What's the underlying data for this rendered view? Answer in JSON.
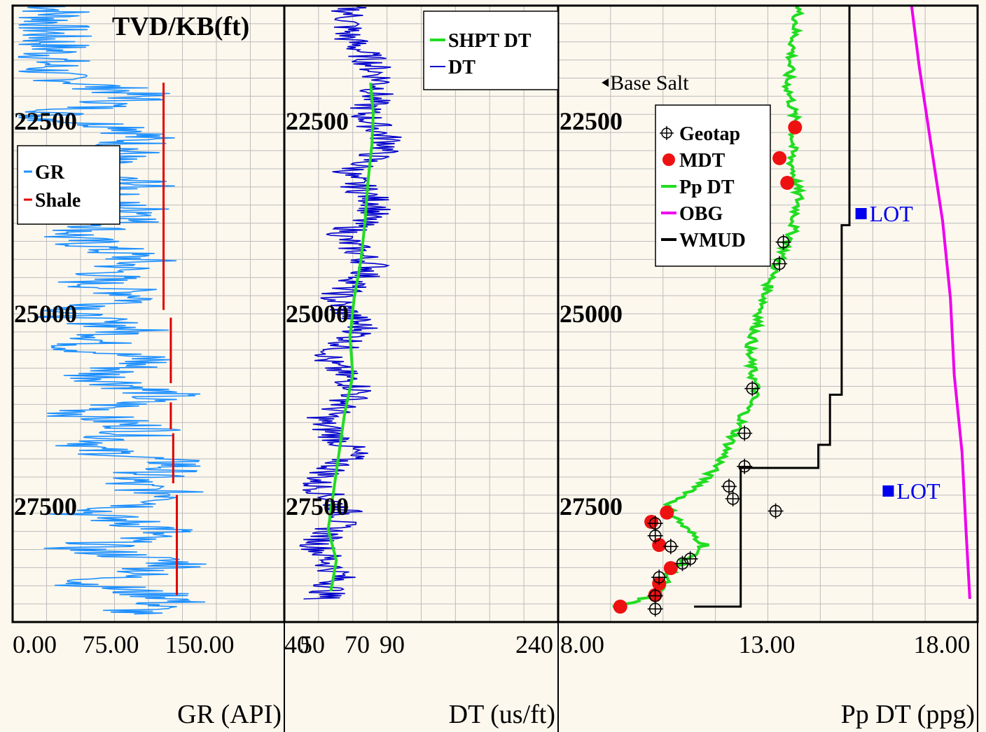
{
  "colors": {
    "background": "#fdf8ee",
    "grid": "#bcbcbc",
    "gr": "#1e90ff",
    "shale": "#e00000",
    "dt": "#0000cc",
    "shpt_dt": "#22dd22",
    "mdt": "#ee1111",
    "obg": "#ee00ee",
    "wmud": "#000000",
    "lot": "#0000ee"
  },
  "depth_title": "TVD/KB(ft)",
  "chart_data": [
    {
      "type": "line",
      "track": "GR",
      "xlabel": "GR (API)",
      "xlim": [
        0,
        225
      ],
      "tick_labels": [
        "0.00",
        "75.00",
        "150.00"
      ],
      "ylim": [
        21000,
        29000
      ],
      "depth_labels": [
        "22500",
        "25000",
        "27500"
      ],
      "legend": [
        "GR",
        "Shale"
      ],
      "legend_position": "upper-left",
      "series": [
        {
          "name": "GR",
          "points": [
            [
              40,
              21000
            ],
            [
              30,
              21300
            ],
            [
              35,
              21600
            ],
            [
              28,
              21900
            ],
            [
              90,
              22100
            ],
            [
              105,
              22200
            ],
            [
              20,
              22450
            ],
            [
              110,
              22600
            ],
            [
              95,
              22900
            ],
            [
              40,
              23150
            ],
            [
              110,
              23300
            ],
            [
              60,
              23500
            ],
            [
              120,
              23700
            ],
            [
              45,
              24000
            ],
            [
              105,
              24300
            ],
            [
              65,
              24600
            ],
            [
              115,
              24800
            ],
            [
              40,
              25000
            ],
            [
              100,
              25200
            ],
            [
              55,
              25450
            ],
            [
              115,
              25600
            ],
            [
              70,
              25800
            ],
            [
              125,
              26050
            ],
            [
              55,
              26300
            ],
            [
              115,
              26500
            ],
            [
              60,
              26750
            ],
            [
              140,
              26950
            ],
            [
              90,
              27200
            ],
            [
              150,
              27400
            ],
            [
              60,
              27600
            ],
            [
              130,
              27800
            ],
            [
              55,
              28050
            ],
            [
              145,
              28250
            ],
            [
              60,
              28500
            ],
            [
              140,
              28700
            ],
            [
              90,
              28900
            ]
          ]
        },
        {
          "name": "Shale",
          "segments": [
            {
              "x": 125,
              "depths": [
                22000,
                24950
              ]
            },
            {
              "x": 131,
              "depths": [
                25050,
                25900
              ]
            },
            {
              "x": 131,
              "depths": [
                26150,
                26500
              ]
            },
            {
              "x": 133,
              "depths": [
                26550,
                27200
              ]
            },
            {
              "x": 136,
              "depths": [
                27350,
                28650
              ]
            }
          ]
        }
      ]
    },
    {
      "type": "line",
      "track": "DT",
      "xlabel": "DT (us/ft)",
      "xlim": [
        40,
        240
      ],
      "tick_labels": [
        "40",
        "50",
        "70",
        "90",
        "240"
      ],
      "ylim": [
        21000,
        29000
      ],
      "depth_labels": [
        "22500",
        "25000",
        "27500"
      ],
      "legend": [
        "SHPT DT",
        "DT"
      ],
      "legend_position": "upper-right",
      "series": [
        {
          "name": "SHPT DT",
          "points": [
            [
              103,
              22000
            ],
            [
              105,
              22400
            ],
            [
              104,
              22800
            ],
            [
              101,
              23300
            ],
            [
              99,
              23800
            ],
            [
              96,
              24300
            ],
            [
              91,
              24800
            ],
            [
              88,
              25300
            ],
            [
              90,
              25800
            ],
            [
              84,
              26300
            ],
            [
              80,
              26800
            ],
            [
              76,
              27300
            ],
            [
              72,
              27800
            ],
            [
              78,
              28200
            ],
            [
              74,
              28600
            ]
          ]
        },
        {
          "name": "DT",
          "points": [
            [
              88,
              21000
            ],
            [
              86,
              21400
            ],
            [
              102,
              21700
            ],
            [
              112,
              22000
            ],
            [
              98,
              22400
            ],
            [
              118,
              22800
            ],
            [
              85,
              23200
            ],
            [
              110,
              23600
            ],
            [
              82,
              24000
            ],
            [
              106,
              24400
            ],
            [
              76,
              24800
            ],
            [
              98,
              25200
            ],
            [
              70,
              25600
            ],
            [
              96,
              26000
            ],
            [
              66,
              26400
            ],
            [
              90,
              26800
            ],
            [
              62,
              27200
            ],
            [
              86,
              27600
            ],
            [
              64,
              28000
            ],
            [
              80,
              28400
            ],
            [
              68,
              28700
            ]
          ]
        }
      ]
    },
    {
      "type": "scatter",
      "track": "Pp DT",
      "xlabel": "Pp DT (ppg)",
      "xlim": [
        8,
        18.8
      ],
      "tick_labels": [
        "8.00",
        "13.00",
        "18.00"
      ],
      "ylim": [
        21000,
        29000
      ],
      "depth_labels": [
        "22500",
        "25000",
        "27500"
      ],
      "legend": [
        "Geotap",
        "MDT",
        "Pp DT",
        "OBG",
        "WMUD"
      ],
      "legend_position": "upper-left",
      "annotations": [
        {
          "text": "Base Salt",
          "x": 9.3,
          "depth": 22000
        },
        {
          "text": "LOT",
          "x": 15.8,
          "depth": 23700
        },
        {
          "text": "LOT",
          "x": 16.5,
          "depth": 27300
        }
      ],
      "series": [
        {
          "name": "Pp DT",
          "points": [
            [
              14.2,
              21000
            ],
            [
              13.9,
              22000
            ],
            [
              14.1,
              22500
            ],
            [
              14.0,
              23000
            ],
            [
              14.2,
              23500
            ],
            [
              14.0,
              24000
            ],
            [
              13.5,
              24500
            ],
            [
              13.2,
              25000
            ],
            [
              12.9,
              25500
            ],
            [
              13.1,
              26000
            ],
            [
              12.6,
              26500
            ],
            [
              12.2,
              26900
            ],
            [
              11.6,
              27250
            ],
            [
              10.8,
              27500
            ],
            [
              11.3,
              27800
            ],
            [
              11.8,
              28000
            ],
            [
              11.0,
              28300
            ],
            [
              10.5,
              28650
            ],
            [
              9.5,
              28800
            ]
          ]
        },
        {
          "name": "MDT",
          "points": [
            [
              14.1,
              22580
            ],
            [
              13.7,
              22980
            ],
            [
              13.9,
              23300
            ],
            [
              10.8,
              27580
            ],
            [
              10.4,
              27700
            ],
            [
              10.6,
              28000
            ],
            [
              10.9,
              28300
            ],
            [
              10.6,
              28500
            ],
            [
              10.5,
              28650
            ],
            [
              9.6,
              28800
            ]
          ]
        },
        {
          "name": "Geotap",
          "points": [
            [
              13.8,
              24070
            ],
            [
              13.7,
              24350
            ],
            [
              13.0,
              25970
            ],
            [
              12.8,
              26550
            ],
            [
              12.8,
              26980
            ],
            [
              12.4,
              27240
            ],
            [
              12.5,
              27400
            ],
            [
              13.6,
              27560
            ],
            [
              10.5,
              27720
            ],
            [
              10.5,
              27880
            ],
            [
              10.9,
              28020
            ],
            [
              11.4,
              28180
            ],
            [
              11.2,
              28240
            ],
            [
              10.6,
              28420
            ],
            [
              10.5,
              28660
            ],
            [
              10.5,
              28830
            ]
          ]
        },
        {
          "name": "OBG",
          "points": [
            [
              17.1,
              21000
            ],
            [
              17.3,
              21800
            ],
            [
              17.6,
              22800
            ],
            [
              17.9,
              23800
            ],
            [
              18.1,
              24800
            ],
            [
              18.2,
              25800
            ],
            [
              18.4,
              26800
            ],
            [
              18.5,
              27800
            ],
            [
              18.6,
              28700
            ]
          ]
        },
        {
          "name": "WMUD",
          "points": [
            [
              15.5,
              21000
            ],
            [
              15.5,
              23850
            ],
            [
              15.3,
              23850
            ],
            [
              15.3,
              26050
            ],
            [
              15.0,
              26050
            ],
            [
              15.0,
              26700
            ],
            [
              14.7,
              26700
            ],
            [
              14.7,
              27000
            ],
            [
              12.7,
              27000
            ],
            [
              12.7,
              28800
            ],
            [
              11.5,
              28800
            ]
          ]
        },
        {
          "name": "LOT",
          "points": [
            [
              15.8,
              23700
            ],
            [
              16.5,
              27300
            ]
          ]
        }
      ]
    }
  ]
}
